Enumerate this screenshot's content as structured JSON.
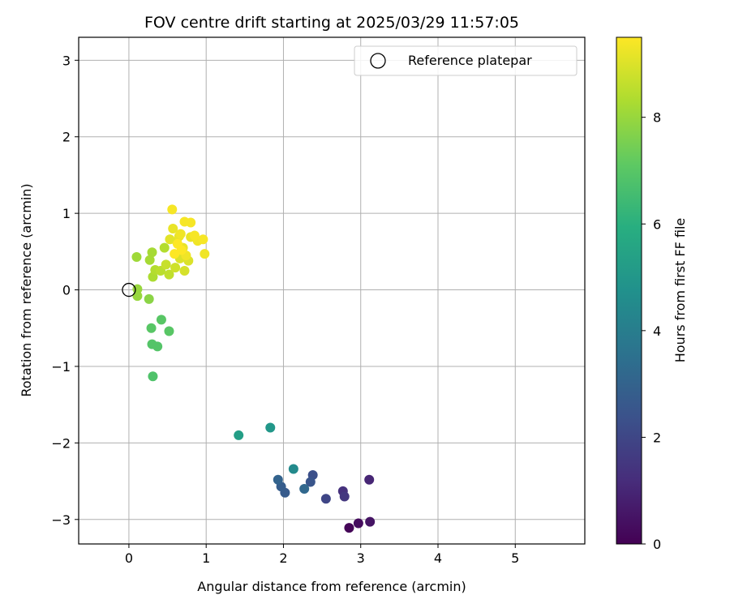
{
  "chart_data": {
    "type": "scatter",
    "title": "FOV centre drift starting at 2025/03/29 11:57:05",
    "xlabel": "Angular distance from reference (arcmin)",
    "ylabel": "Rotation from reference (arcmin)",
    "xlim": [
      -0.65,
      5.9
    ],
    "ylim": [
      -3.32,
      3.3
    ],
    "xticks": [
      0,
      1,
      2,
      3,
      4,
      5
    ],
    "yticks": [
      -3,
      -2,
      -1,
      0,
      1,
      2,
      3
    ],
    "grid": true,
    "legend_position": "top-right",
    "colormap": "viridis",
    "colorbar": {
      "label": "Hours from first FF file",
      "range": [
        0,
        9.5
      ],
      "ticks": [
        0,
        2,
        4,
        6,
        8
      ]
    },
    "reference": {
      "name": "Reference platepar",
      "x": 0,
      "y": 0
    },
    "points": [
      {
        "x": 2.85,
        "y": -3.11,
        "t": 0.1
      },
      {
        "x": 2.97,
        "y": -3.05,
        "t": 0.3
      },
      {
        "x": 3.12,
        "y": -3.03,
        "t": 0.5
      },
      {
        "x": 3.11,
        "y": -2.48,
        "t": 1.0
      },
      {
        "x": 2.77,
        "y": -2.63,
        "t": 1.3
      },
      {
        "x": 2.79,
        "y": -2.7,
        "t": 1.5
      },
      {
        "x": 2.55,
        "y": -2.73,
        "t": 2.0
      },
      {
        "x": 2.38,
        "y": -2.42,
        "t": 2.3
      },
      {
        "x": 2.35,
        "y": -2.51,
        "t": 2.5
      },
      {
        "x": 2.02,
        "y": -2.65,
        "t": 2.7
      },
      {
        "x": 1.97,
        "y": -2.57,
        "t": 2.8
      },
      {
        "x": 1.93,
        "y": -2.48,
        "t": 3.0
      },
      {
        "x": 2.27,
        "y": -2.6,
        "t": 3.2
      },
      {
        "x": 2.13,
        "y": -2.34,
        "t": 4.5
      },
      {
        "x": 1.83,
        "y": -1.8,
        "t": 5.0
      },
      {
        "x": 1.42,
        "y": -1.9,
        "t": 5.3
      },
      {
        "x": 0.31,
        "y": -1.13,
        "t": 6.8
      },
      {
        "x": 0.3,
        "y": -0.71,
        "t": 6.9
      },
      {
        "x": 0.37,
        "y": -0.74,
        "t": 6.9
      },
      {
        "x": 0.29,
        "y": -0.5,
        "t": 7.0
      },
      {
        "x": 0.52,
        "y": -0.54,
        "t": 7.0
      },
      {
        "x": 0.42,
        "y": -0.39,
        "t": 7.0
      },
      {
        "x": 0.26,
        "y": -0.12,
        "t": 7.8
      },
      {
        "x": 0.11,
        "y": 0.01,
        "t": 8.0
      },
      {
        "x": 0.11,
        "y": -0.08,
        "t": 8.0
      },
      {
        "x": 0.1,
        "y": 0.43,
        "t": 8.1
      },
      {
        "x": 0.3,
        "y": 0.49,
        "t": 8.2
      },
      {
        "x": 0.27,
        "y": 0.39,
        "t": 8.2
      },
      {
        "x": 0.31,
        "y": 0.17,
        "t": 8.3
      },
      {
        "x": 0.34,
        "y": 0.26,
        "t": 8.4
      },
      {
        "x": 0.46,
        "y": 0.55,
        "t": 8.4
      },
      {
        "x": 0.41,
        "y": 0.25,
        "t": 8.5
      },
      {
        "x": 0.52,
        "y": 0.2,
        "t": 8.6
      },
      {
        "x": 0.48,
        "y": 0.33,
        "t": 8.7
      },
      {
        "x": 0.6,
        "y": 0.29,
        "t": 8.8
      },
      {
        "x": 0.72,
        "y": 0.25,
        "t": 8.9
      },
      {
        "x": 0.66,
        "y": 0.41,
        "t": 9.0
      },
      {
        "x": 0.77,
        "y": 0.38,
        "t": 9.0
      },
      {
        "x": 0.53,
        "y": 0.66,
        "t": 9.1
      },
      {
        "x": 0.62,
        "y": 0.63,
        "t": 9.1
      },
      {
        "x": 0.65,
        "y": 0.7,
        "t": 9.2
      },
      {
        "x": 0.57,
        "y": 0.8,
        "t": 9.2
      },
      {
        "x": 0.7,
        "y": 0.55,
        "t": 9.2
      },
      {
        "x": 0.8,
        "y": 0.69,
        "t": 9.2
      },
      {
        "x": 0.67,
        "y": 0.73,
        "t": 9.3
      },
      {
        "x": 0.89,
        "y": 0.64,
        "t": 9.3
      },
      {
        "x": 0.98,
        "y": 0.47,
        "t": 9.3
      },
      {
        "x": 0.74,
        "y": 0.45,
        "t": 9.3
      },
      {
        "x": 0.72,
        "y": 0.89,
        "t": 9.4
      },
      {
        "x": 0.8,
        "y": 0.88,
        "t": 9.4
      },
      {
        "x": 0.56,
        "y": 1.05,
        "t": 9.4
      },
      {
        "x": 0.85,
        "y": 0.71,
        "t": 9.4
      },
      {
        "x": 0.96,
        "y": 0.66,
        "t": 9.4
      },
      {
        "x": 0.63,
        "y": 0.6,
        "t": 9.5
      },
      {
        "x": 0.68,
        "y": 0.52,
        "t": 9.5
      },
      {
        "x": 0.59,
        "y": 0.47,
        "t": 9.5
      }
    ]
  }
}
